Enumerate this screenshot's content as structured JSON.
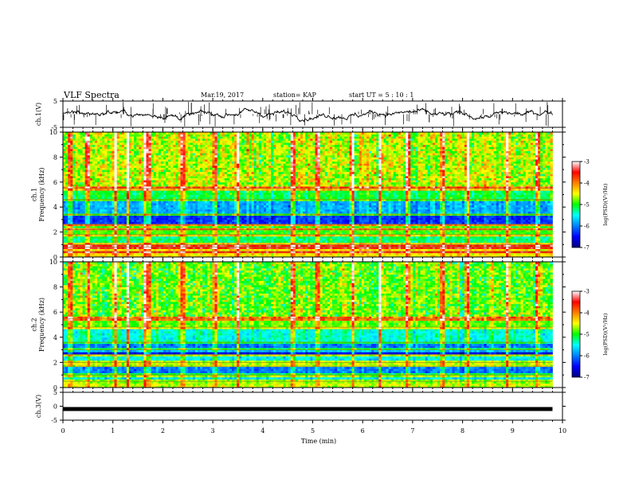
{
  "header": {
    "title": "VLF Spectra",
    "date": "Mar.19, 2017",
    "station": "station= KAP",
    "start_time": "start  UT =   5  : 10 : 1"
  },
  "chart_data": [
    {
      "id": "ch1-waveform",
      "type": "line",
      "ylabel": "ch.1(V)",
      "ylim": [
        -5,
        5
      ],
      "yticks": [
        "5",
        "-5"
      ],
      "xlim": [
        0,
        10
      ],
      "series": [
        {
          "trace": "ch1",
          "mean_v": 0.0,
          "amplitude_v": 1.5,
          "data_end_min": 9.8
        }
      ]
    },
    {
      "id": "ch1-spectrogram",
      "type": "heatmap",
      "ylabel": "ch.1\nFrequency  (kHz)",
      "ylim": [
        0,
        10
      ],
      "yticks": [
        "0",
        "2",
        "4",
        "6",
        "8",
        "10"
      ],
      "xlim": [
        0,
        10
      ],
      "data_end_min": 9.8,
      "colorbar": {
        "label": "log(PSD)(V²/Hz)",
        "range": [
          -7,
          -3
        ],
        "ticks": [
          "-3",
          "-4",
          "-5",
          "-6",
          "-7"
        ]
      },
      "bands": [
        {
          "f0": 0,
          "f1": 1.0,
          "v": -4.4
        },
        {
          "f0": 1.0,
          "f1": 1.8,
          "v": -5.2
        },
        {
          "f0": 1.8,
          "f1": 2.6,
          "v": -4.9
        },
        {
          "f0": 2.6,
          "f1": 3.4,
          "v": -6.3
        },
        {
          "f0": 3.4,
          "f1": 4.6,
          "v": -5.8
        },
        {
          "f0": 4.6,
          "f1": 5.5,
          "v": -5.1
        },
        {
          "f0": 5.5,
          "f1": 10,
          "v": -4.6
        }
      ],
      "lines_khz": [
        0.4,
        0.8,
        1.0,
        1.8,
        2.2,
        2.6,
        3.4,
        4.6,
        5.5
      ],
      "bursts_min": [
        0.15,
        0.5,
        1.05,
        1.3,
        1.65,
        1.72,
        2.4,
        3.05,
        3.5,
        4.6,
        5.1,
        5.8,
        6.35,
        6.9,
        7.6,
        8.1,
        8.9,
        9.5
      ]
    },
    {
      "id": "ch2-spectrogram",
      "type": "heatmap",
      "ylabel": "ch.2\nFrequency  (kHz)",
      "ylim": [
        0,
        10
      ],
      "yticks": [
        "0",
        "2",
        "4",
        "6",
        "8",
        "10"
      ],
      "xlim": [
        0,
        10
      ],
      "data_end_min": 9.8,
      "colorbar": {
        "label": "log(PSD)(V²/Hz)",
        "range": [
          -7,
          -3
        ],
        "ticks": [
          "-3",
          "-4",
          "-5",
          "-6",
          "-7"
        ]
      },
      "bands": [
        {
          "f0": 0,
          "f1": 0.4,
          "v": -4.6
        },
        {
          "f0": 0.4,
          "f1": 1.0,
          "v": -5.6
        },
        {
          "f0": 1.0,
          "f1": 1.6,
          "v": -6.0
        },
        {
          "f0": 1.6,
          "f1": 2.6,
          "v": -5.5
        },
        {
          "f0": 2.6,
          "f1": 3.0,
          "v": -6.6
        },
        {
          "f0": 3.0,
          "f1": 3.6,
          "v": -6.0
        },
        {
          "f0": 3.6,
          "f1": 4.8,
          "v": -5.4
        },
        {
          "f0": 4.8,
          "f1": 10,
          "v": -4.8
        }
      ],
      "lines_khz": [
        0.5,
        1.0,
        1.7,
        2.0,
        2.6,
        3.0,
        3.6,
        4.8,
        5.5
      ],
      "bursts_min": [
        0.15,
        0.5,
        1.05,
        1.3,
        1.65,
        1.72,
        2.4,
        3.05,
        3.5,
        4.6,
        5.1,
        5.8,
        6.35,
        6.9,
        7.6,
        8.1,
        8.9,
        9.5
      ]
    },
    {
      "id": "ch3-waveform",
      "type": "line",
      "ylabel": "ch.3(V)",
      "ylim": [
        -5,
        5
      ],
      "yticks": [
        "5",
        "0",
        "-5"
      ],
      "xlim": [
        0,
        10
      ],
      "xlabel": "Time  (min)",
      "xticks": [
        "0",
        "1",
        "2",
        "3",
        "4",
        "5",
        "6",
        "7",
        "8",
        "9",
        "10"
      ],
      "series": [
        {
          "trace": "ch3",
          "level_v": -1.0,
          "data_end_min": 9.8
        }
      ]
    }
  ],
  "colors": {
    "axis": "#000000",
    "trace": "#000000",
    "background": "#ffffff"
  }
}
